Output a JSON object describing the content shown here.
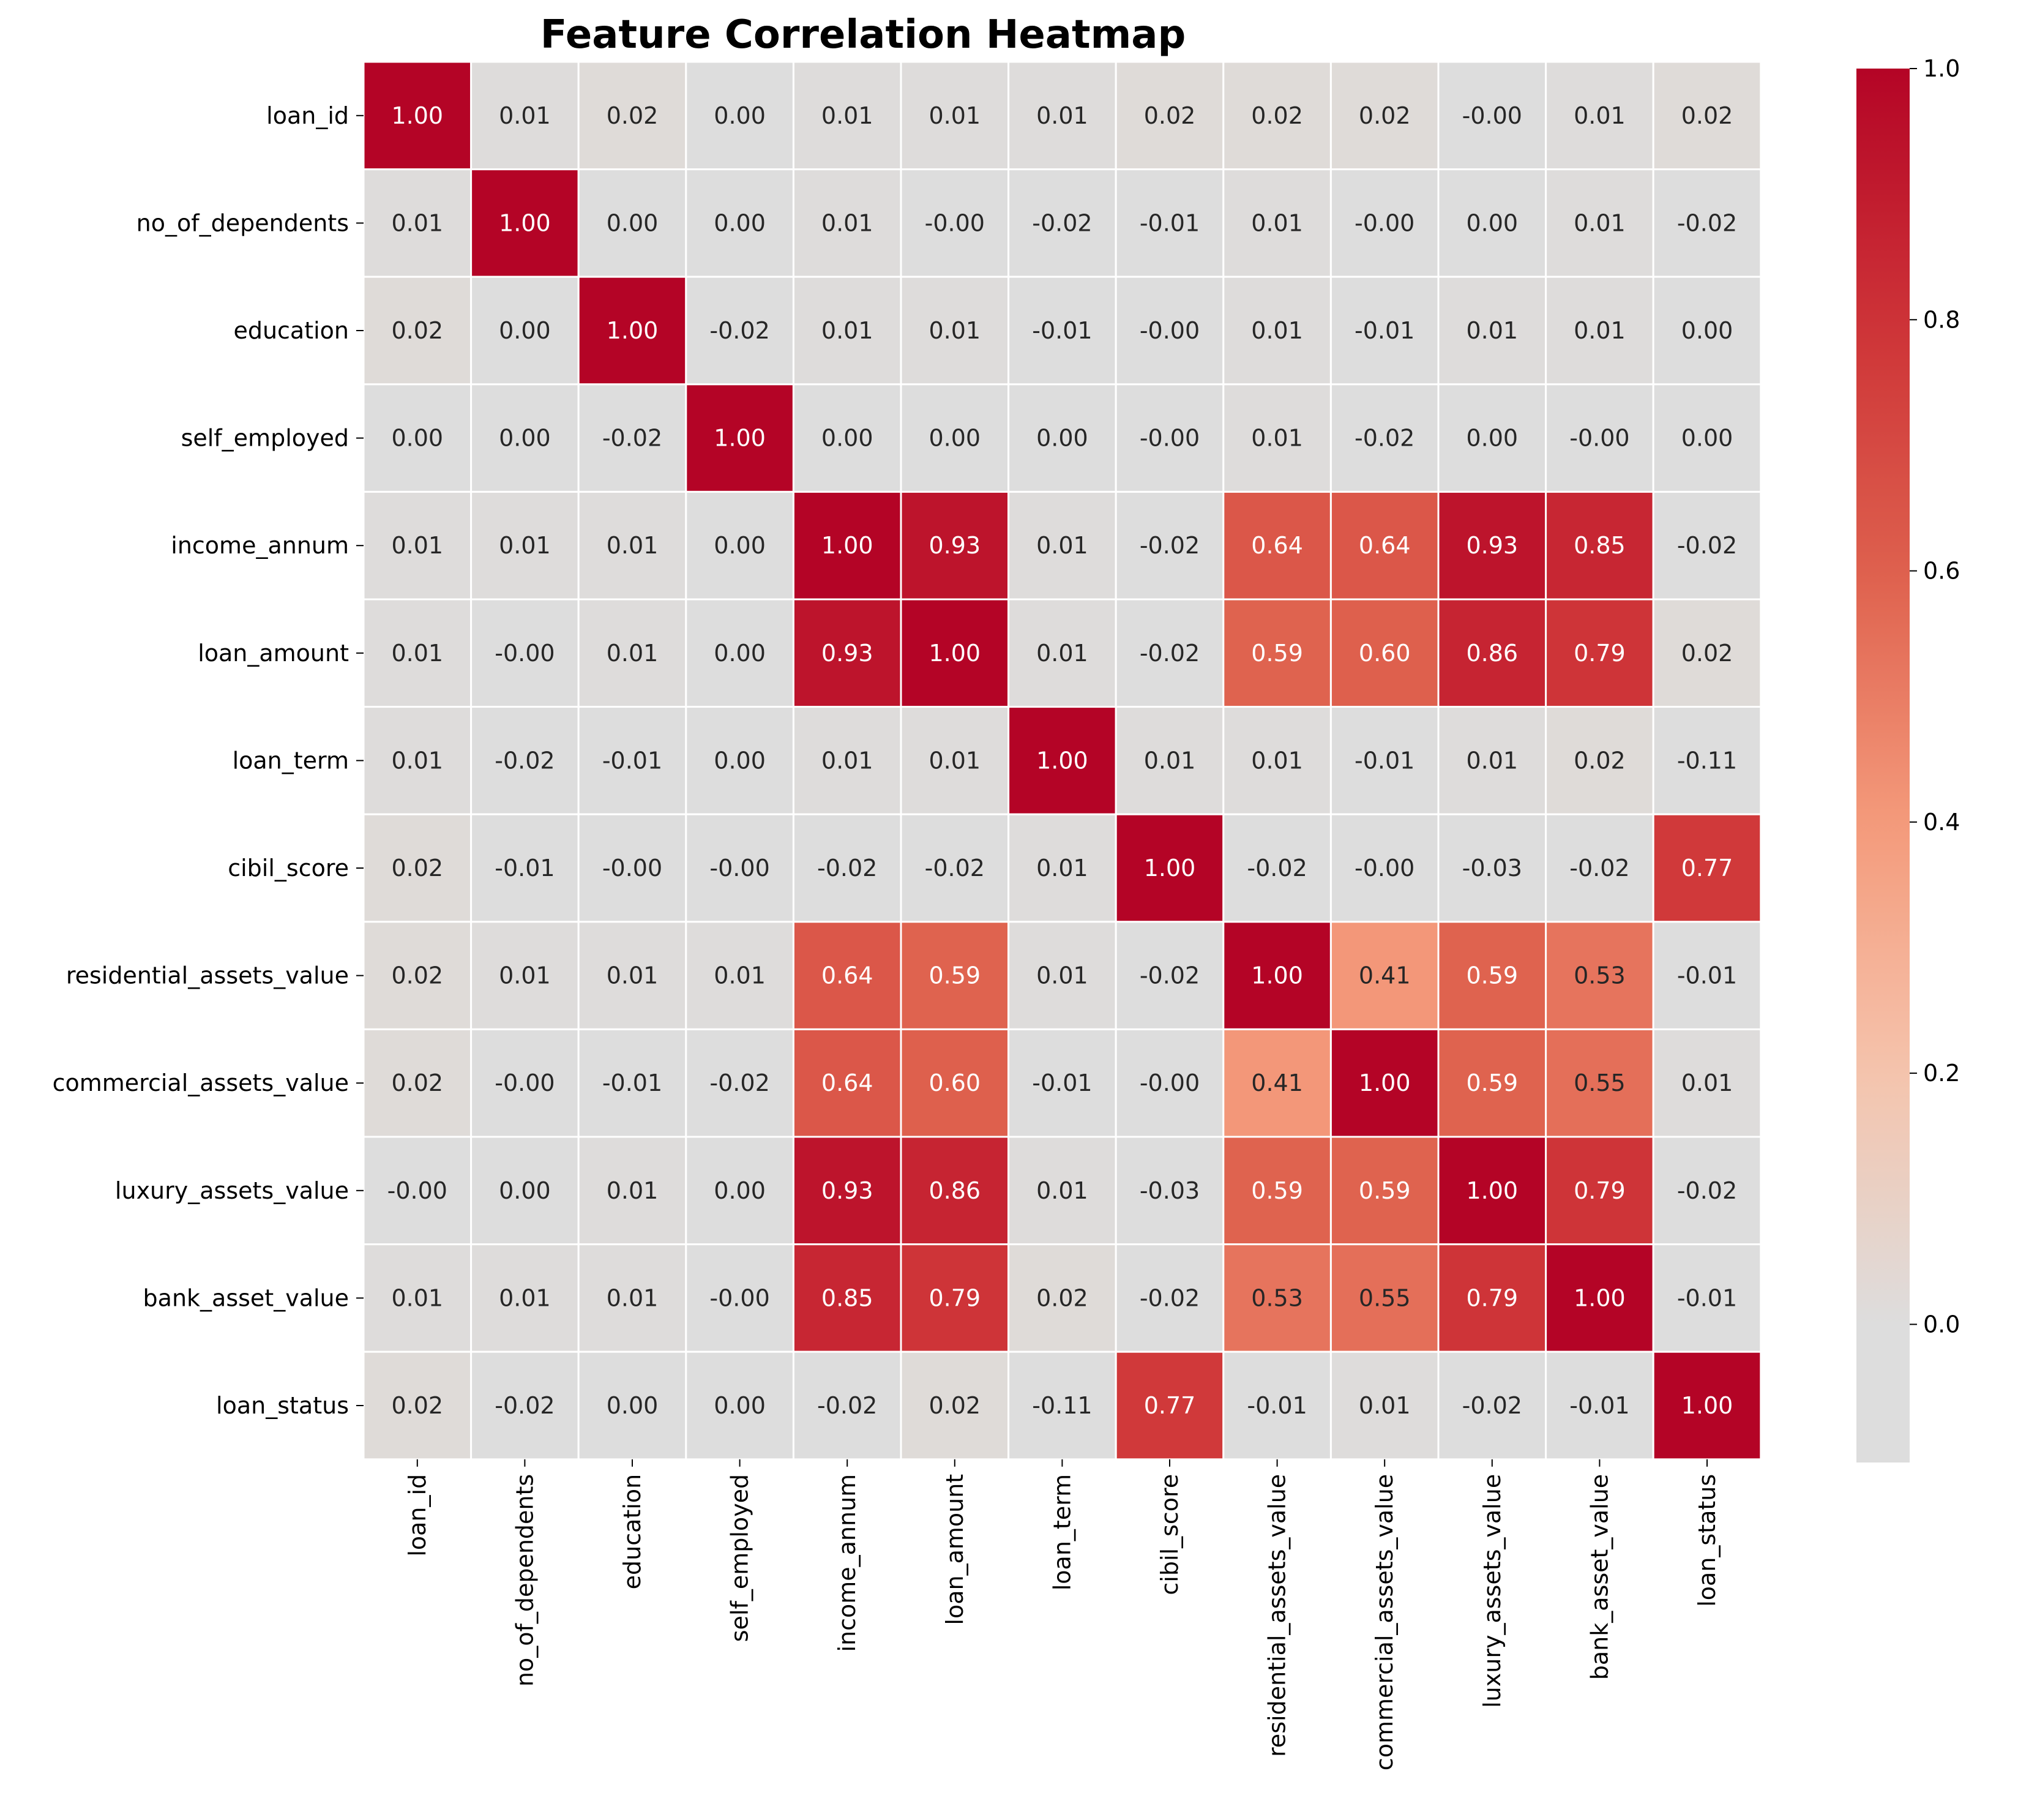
{
  "chart_data": {
    "type": "heatmap",
    "title": "Feature Correlation Heatmap",
    "xlabel": "",
    "ylabel": "",
    "labels": [
      "loan_id",
      "no_of_dependents",
      "education",
      "self_employed",
      "income_annum",
      "loan_amount",
      "loan_term",
      "cibil_score",
      "residential_assets_value",
      "commercial_assets_value",
      "luxury_assets_value",
      "bank_asset_value",
      "loan_status"
    ],
    "matrix": [
      [
        1.0,
        0.01,
        0.02,
        0.0,
        0.01,
        0.01,
        0.01,
        0.02,
        0.02,
        0.02,
        -0.0,
        0.01,
        0.02
      ],
      [
        0.01,
        1.0,
        0.0,
        0.0,
        0.01,
        -0.0,
        -0.02,
        -0.01,
        0.01,
        -0.0,
        0.0,
        0.01,
        -0.02
      ],
      [
        0.02,
        0.0,
        1.0,
        -0.02,
        0.01,
        0.01,
        -0.01,
        -0.0,
        0.01,
        -0.01,
        0.01,
        0.01,
        0.0
      ],
      [
        0.0,
        0.0,
        -0.02,
        1.0,
        0.0,
        0.0,
        0.0,
        -0.0,
        0.01,
        -0.02,
        0.0,
        -0.0,
        0.0
      ],
      [
        0.01,
        0.01,
        0.01,
        0.0,
        1.0,
        0.93,
        0.01,
        -0.02,
        0.64,
        0.64,
        0.93,
        0.85,
        -0.02
      ],
      [
        0.01,
        -0.0,
        0.01,
        0.0,
        0.93,
        1.0,
        0.01,
        -0.02,
        0.59,
        0.6,
        0.86,
        0.79,
        0.02
      ],
      [
        0.01,
        -0.02,
        -0.01,
        0.0,
        0.01,
        0.01,
        1.0,
        0.01,
        0.01,
        -0.01,
        0.01,
        0.02,
        -0.11
      ],
      [
        0.02,
        -0.01,
        -0.0,
        -0.0,
        -0.02,
        -0.02,
        0.01,
        1.0,
        -0.02,
        -0.0,
        -0.03,
        -0.02,
        0.77
      ],
      [
        0.02,
        0.01,
        0.01,
        0.01,
        0.64,
        0.59,
        0.01,
        -0.02,
        1.0,
        0.41,
        0.59,
        0.53,
        -0.01
      ],
      [
        0.02,
        -0.0,
        -0.01,
        -0.02,
        0.64,
        0.6,
        -0.01,
        -0.0,
        0.41,
        1.0,
        0.59,
        0.55,
        0.01
      ],
      [
        -0.0,
        0.0,
        0.01,
        0.0,
        0.93,
        0.86,
        0.01,
        -0.03,
        0.59,
        0.59,
        1.0,
        0.79,
        -0.02
      ],
      [
        0.01,
        0.01,
        0.01,
        -0.0,
        0.85,
        0.79,
        0.02,
        -0.02,
        0.53,
        0.55,
        0.79,
        1.0,
        -0.01
      ],
      [
        0.02,
        -0.02,
        0.0,
        0.0,
        -0.02,
        0.02,
        -0.11,
        0.77,
        -0.01,
        0.01,
        -0.02,
        -0.01,
        1.0
      ]
    ],
    "value_format": "0.00",
    "colormap": "coolwarm",
    "color_range": [
      -0.11,
      1.0
    ],
    "colorbar": {
      "ticks": [
        0.0,
        0.2,
        0.4,
        0.6,
        0.8,
        1.0
      ],
      "tick_labels": [
        "0.0",
        "0.2",
        "0.4",
        "0.6",
        "0.8",
        "1.0"
      ],
      "placement": "right"
    },
    "grid_line_color": "#ffffff",
    "annotation_text_colors": {
      "dark_cell": "#ffffff",
      "light_cell": "#262626"
    }
  }
}
